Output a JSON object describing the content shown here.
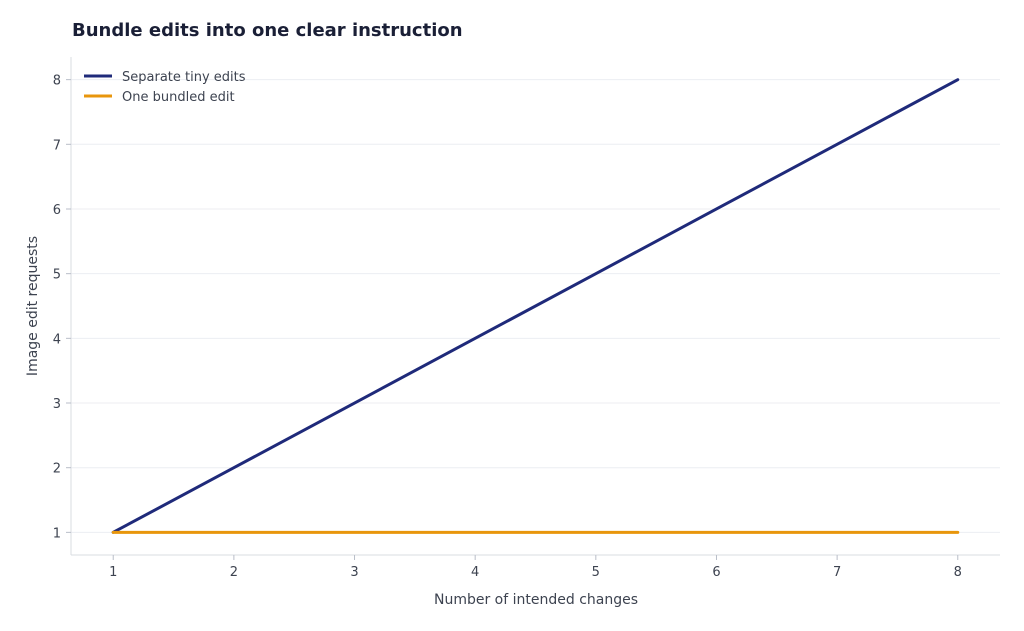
{
  "chart_data": {
    "type": "line",
    "title": "Bundle edits into one clear instruction",
    "xlabel": "Number of intended changes",
    "ylabel": "Image edit requests",
    "x": [
      1,
      2,
      3,
      4,
      5,
      6,
      7,
      8
    ],
    "xlim": [
      0.65,
      8.35
    ],
    "ylim": [
      0.65,
      8.35
    ],
    "xticks": [
      1,
      2,
      3,
      4,
      5,
      6,
      7,
      8
    ],
    "yticks": [
      1,
      2,
      3,
      4,
      5,
      6,
      7,
      8
    ],
    "grid": "horizontal",
    "legend_position": "top-left",
    "series": [
      {
        "name": "Separate tiny edits",
        "color": "#1f2a7a",
        "values": [
          1,
          2,
          3,
          4,
          5,
          6,
          7,
          8
        ]
      },
      {
        "name": "One bundled edit",
        "color": "#e8960c",
        "values": [
          1,
          1,
          1,
          1,
          1,
          1,
          1,
          1
        ]
      }
    ]
  }
}
